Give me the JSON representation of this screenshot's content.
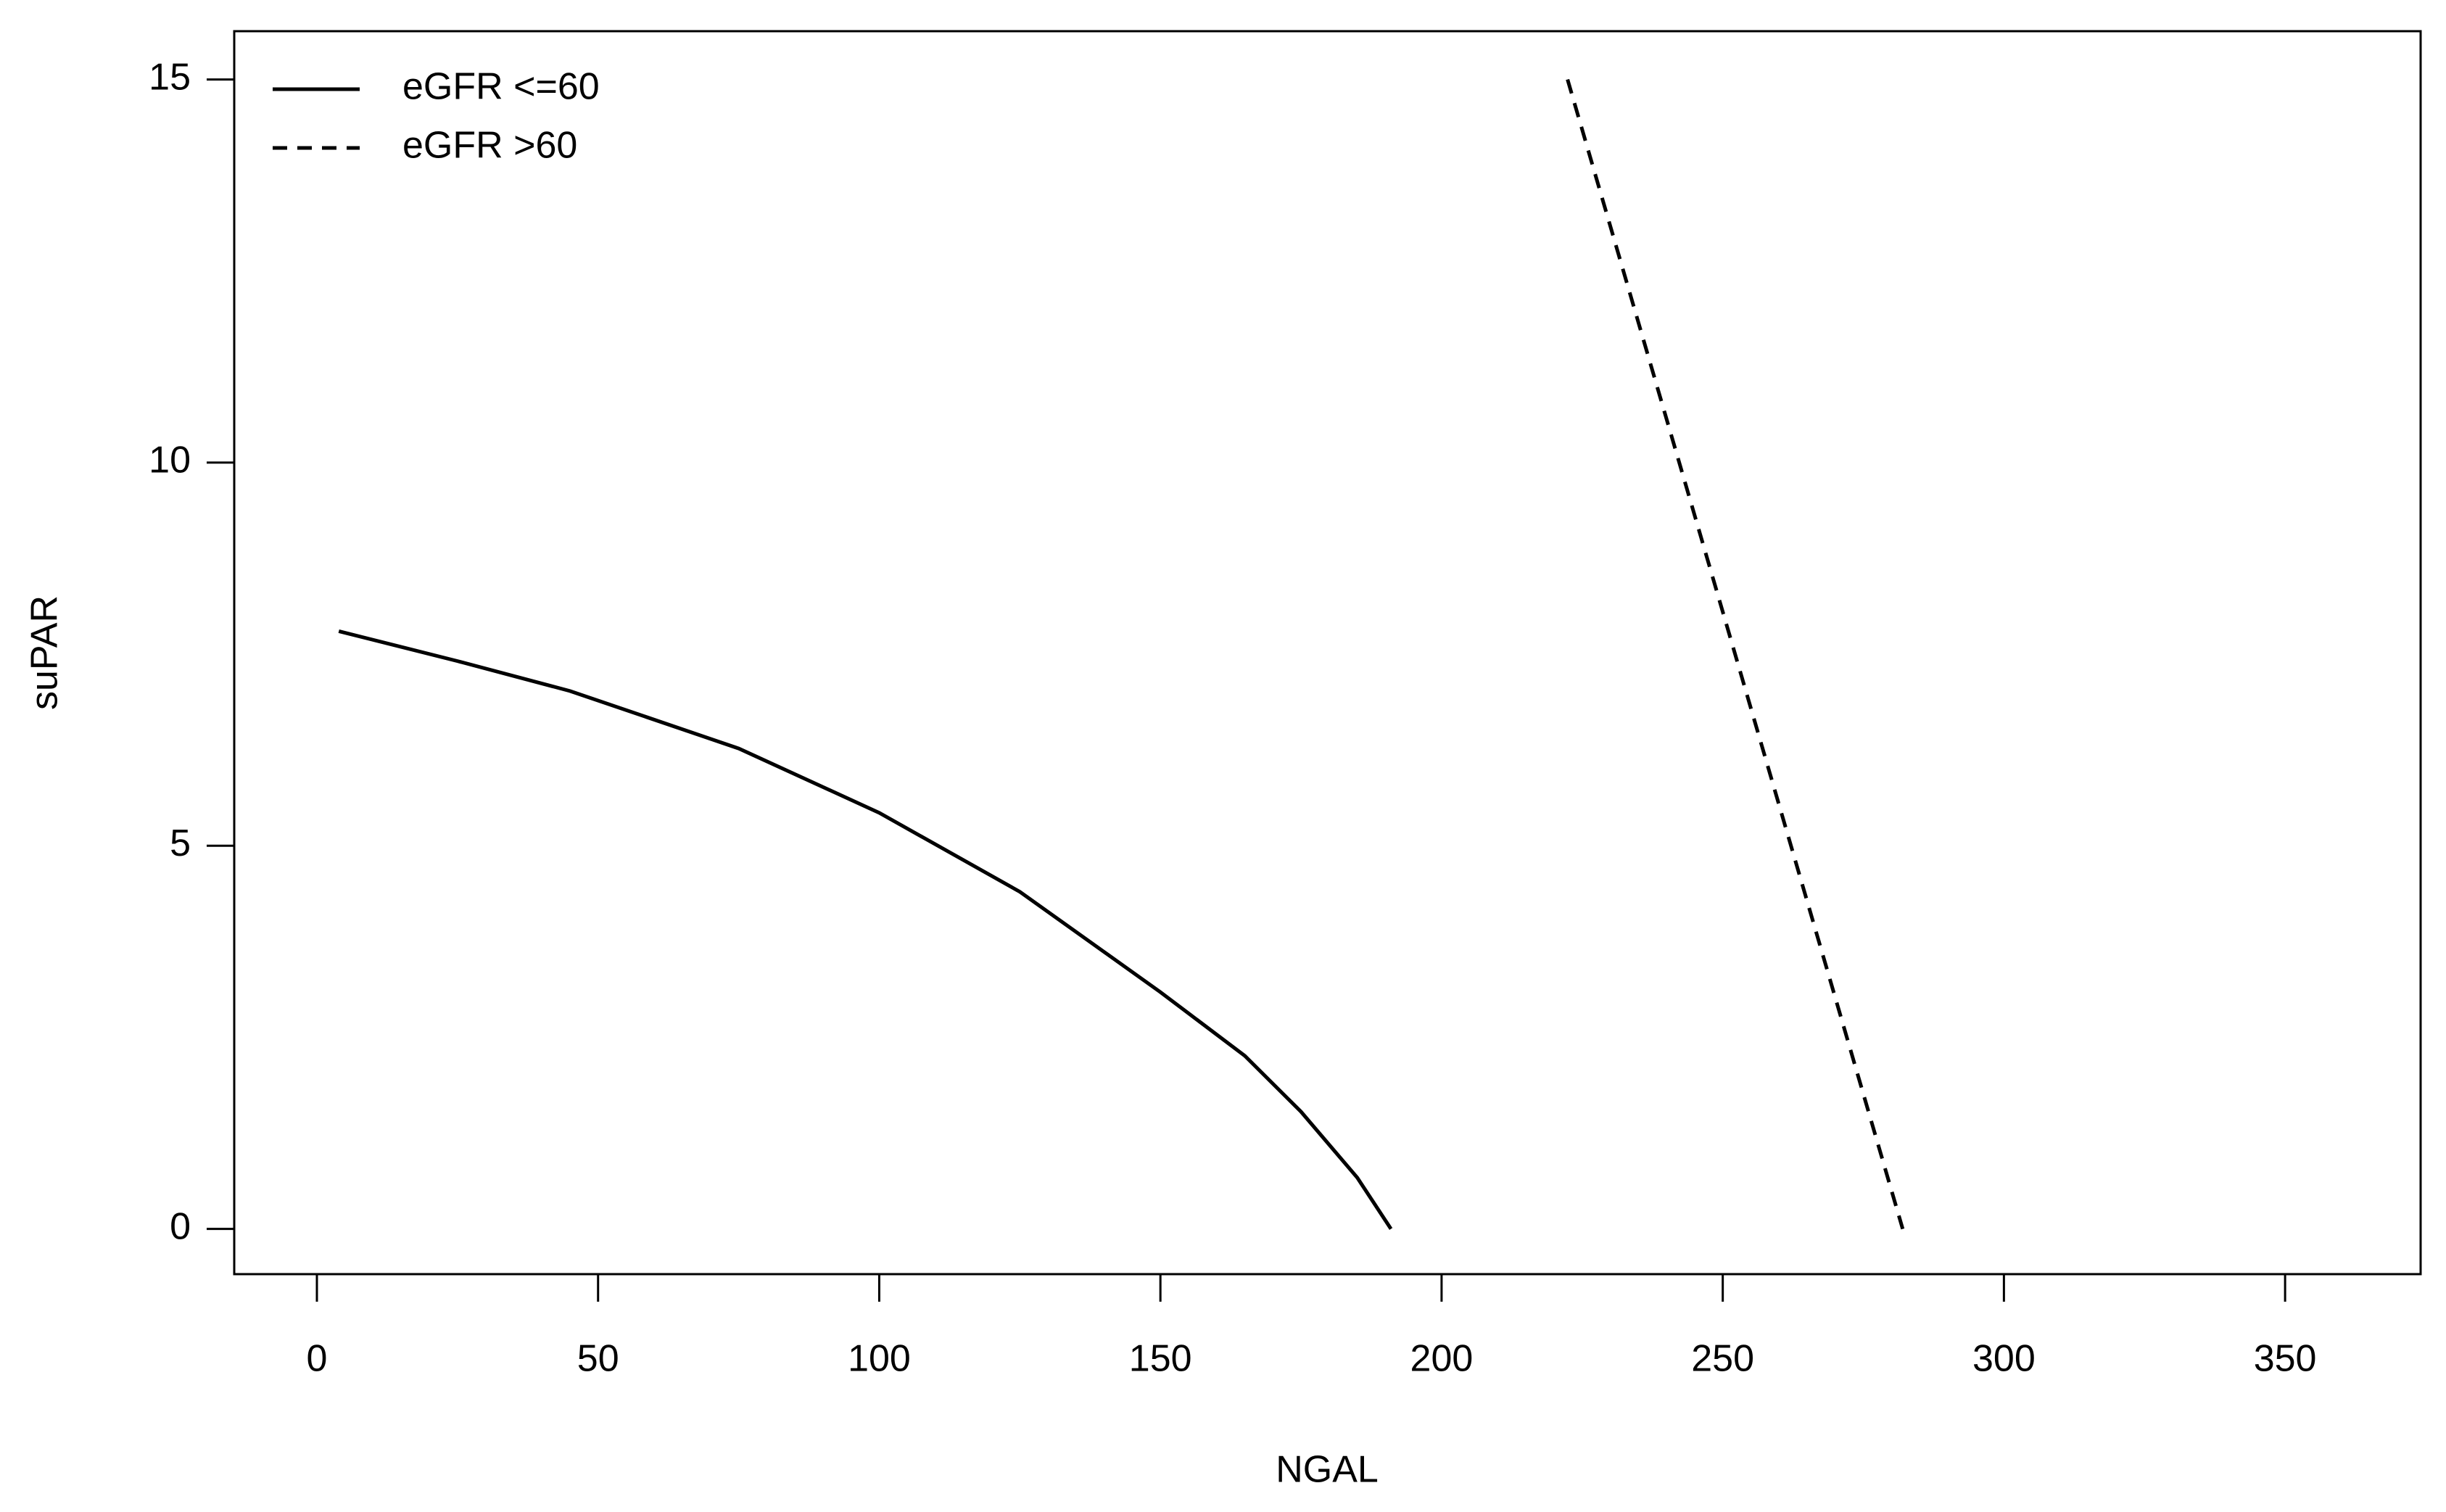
{
  "chart_data": {
    "type": "line",
    "xlabel": "NGAL",
    "ylabel": "suPAR",
    "xlim": [
      -14.7,
      374.1
    ],
    "ylim": [
      -0.59,
      15.63
    ],
    "xticks": [
      0,
      50,
      100,
      150,
      200,
      250,
      300,
      350
    ],
    "yticks": [
      0,
      5,
      10,
      15
    ],
    "legend": "top-left",
    "series": [
      {
        "name": "eGFR <=60",
        "color": "#000000",
        "linestyle": "solid",
        "x": [
          3.9,
          25,
          45,
          75,
          100,
          125,
          150,
          165,
          175,
          185,
          191
        ],
        "values": [
          7.8,
          7.41,
          7.02,
          6.27,
          5.43,
          4.4,
          3.09,
          2.26,
          1.53,
          0.67,
          0
        ]
      },
      {
        "name": "eGFR >60",
        "color": "#000000",
        "linestyle": "dashed",
        "x": [
          222.4,
          282.0
        ],
        "values": [
          15.0,
          0
        ]
      }
    ]
  }
}
